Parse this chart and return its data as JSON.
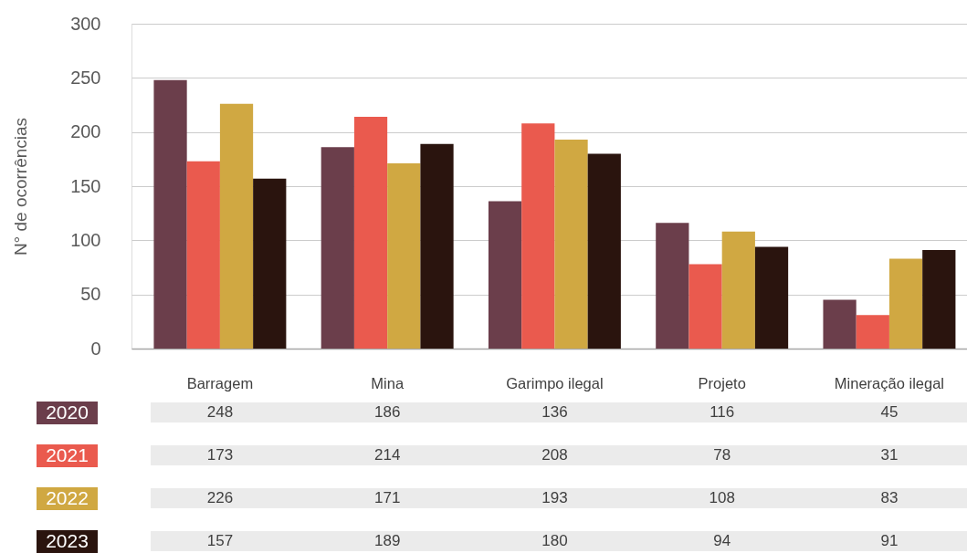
{
  "chart_data": {
    "type": "bar",
    "ylabel": "N° de ocorrências",
    "categories": [
      "Barragem",
      "Mina",
      "Garimpo ilegal",
      "Projeto",
      "Mineração ilegal"
    ],
    "series": [
      {
        "name": "2020",
        "color": "#6b3e4b",
        "values": [
          248,
          186,
          136,
          116,
          45
        ]
      },
      {
        "name": "2021",
        "color": "#ea5a4e",
        "values": [
          173,
          214,
          208,
          78,
          31
        ]
      },
      {
        "name": "2022",
        "color": "#d0a842",
        "values": [
          226,
          171,
          193,
          108,
          83
        ]
      },
      {
        "name": "2023",
        "color": "#2a140e",
        "values": [
          157,
          189,
          180,
          94,
          91
        ]
      }
    ],
    "ylim": [
      0,
      300
    ],
    "yticks": [
      0,
      50,
      100,
      150,
      200,
      250,
      300
    ],
    "grid": "y",
    "legend": "bottom left",
    "data_labels": true
  }
}
